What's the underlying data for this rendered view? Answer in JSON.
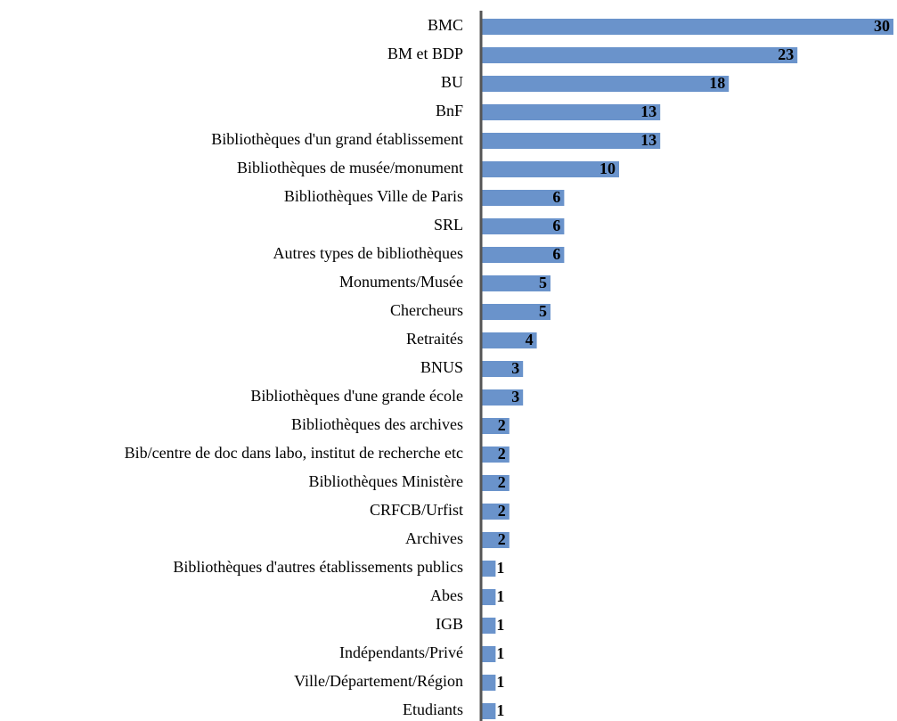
{
  "chart_data": {
    "type": "bar",
    "orientation": "horizontal",
    "categories": [
      "BMC",
      "BM et BDP",
      "BU",
      "BnF",
      "Bibliothèques d'un grand établissement",
      "Bibliothèques de musée/monument",
      "Bibliothèques Ville de Paris",
      "SRL",
      "Autres types de bibliothèques",
      "Monuments/Musée",
      "Chercheurs",
      "Retraités",
      "BNUS",
      "Bibliothèques d'une grande école",
      "Bibliothèques des archives",
      "Bib/centre de doc dans labo, institut de recherche etc",
      "Bibliothèques Ministère",
      "CRFCB/Urfist",
      "Archives",
      "Bibliothèques d'autres établissements publics",
      "Abes",
      "IGB",
      "Indépendants/Privé",
      "Ville/Département/Région",
      "Etudiants"
    ],
    "values": [
      30,
      23,
      18,
      13,
      13,
      10,
      6,
      6,
      6,
      5,
      5,
      4,
      3,
      3,
      2,
      2,
      2,
      2,
      2,
      1,
      1,
      1,
      1,
      1,
      1
    ],
    "color": "#6a93cb"
  }
}
